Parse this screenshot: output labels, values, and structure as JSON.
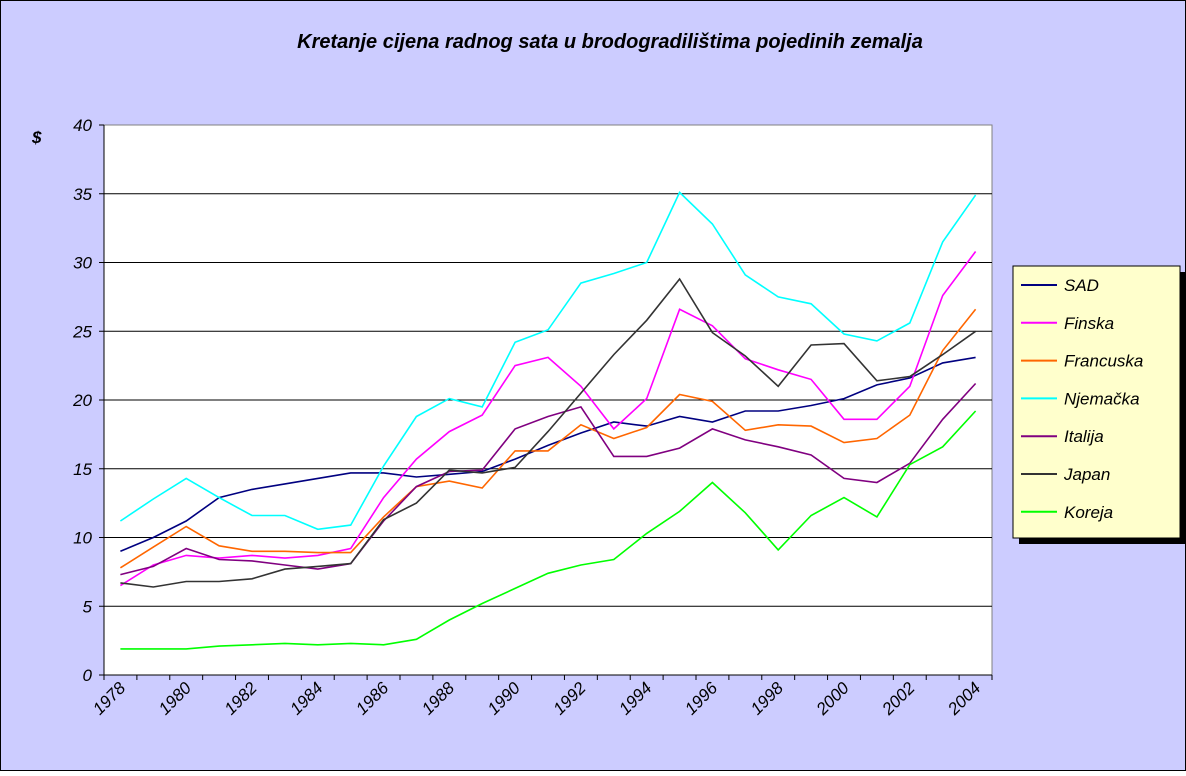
{
  "chart_data": {
    "type": "line",
    "title": "Kretanje cijena radnog sata u brodogradilištima pojedinih zemalja",
    "y_label": "$",
    "categories": [
      "1978",
      null,
      "1980",
      null,
      "1982",
      null,
      "1984",
      null,
      "1986",
      null,
      "1988",
      null,
      "1990",
      null,
      "1992",
      null,
      "1994",
      null,
      "1996",
      null,
      "1998",
      null,
      "2000",
      null,
      "2002",
      null,
      "2004"
    ],
    "ylim": [
      0,
      40
    ],
    "yticks": [
      0,
      5,
      10,
      15,
      20,
      25,
      30,
      35,
      40
    ],
    "grid": true,
    "legend": "right",
    "series": [
      {
        "name": "SAD",
        "color": "#000080",
        "values": [
          9.0,
          10.0,
          11.2,
          12.9,
          13.5,
          13.9,
          14.3,
          14.7,
          14.7,
          14.4,
          14.6,
          14.8,
          15.7,
          16.7,
          17.6,
          18.4,
          18.1,
          18.8,
          18.4,
          19.2,
          19.2,
          19.6,
          20.1,
          21.1,
          21.6,
          22.7,
          23.1
        ]
      },
      {
        "name": "Finska",
        "color": "#ff00ff",
        "values": [
          6.5,
          8.0,
          8.7,
          8.5,
          8.7,
          8.5,
          8.7,
          9.2,
          12.9,
          15.7,
          17.7,
          18.9,
          22.5,
          23.1,
          21.0,
          17.9,
          20.1,
          26.6,
          25.4,
          23.0,
          22.2,
          21.5,
          18.6,
          18.6,
          21.0,
          27.6,
          30.8
        ]
      },
      {
        "name": "Francuska",
        "color": "#ff6600",
        "values": [
          7.8,
          9.3,
          10.8,
          9.4,
          9.0,
          9.0,
          8.9,
          8.9,
          11.5,
          13.7,
          14.1,
          13.6,
          16.3,
          16.3,
          18.2,
          17.2,
          18.0,
          20.4,
          19.9,
          17.8,
          18.2,
          18.1,
          16.9,
          17.2,
          18.9,
          23.6,
          26.6
        ]
      },
      {
        "name": "Njemačka",
        "color": "#00ffff",
        "values": [
          11.2,
          12.8,
          14.3,
          12.9,
          11.6,
          11.6,
          10.6,
          10.9,
          15.2,
          18.8,
          20.1,
          19.5,
          24.2,
          25.1,
          28.5,
          29.2,
          30.0,
          35.1,
          32.8,
          29.1,
          27.5,
          27.0,
          24.8,
          24.3,
          25.6,
          31.5,
          34.9
        ]
      },
      {
        "name": "Italija",
        "color": "#800080",
        "values": [
          7.3,
          7.9,
          9.2,
          8.4,
          8.3,
          8.0,
          7.7,
          8.1,
          11.2,
          13.7,
          14.8,
          14.9,
          17.9,
          18.8,
          19.5,
          15.9,
          15.9,
          16.5,
          17.9,
          17.1,
          16.6,
          16.0,
          14.3,
          14.0,
          15.4,
          18.6,
          21.2
        ]
      },
      {
        "name": "Japan",
        "color": "#333333",
        "values": [
          6.7,
          6.4,
          6.8,
          6.8,
          7.0,
          7.7,
          7.9,
          8.1,
          11.3,
          12.5,
          14.9,
          14.7,
          15.1,
          17.7,
          20.5,
          23.3,
          25.8,
          28.8,
          24.9,
          23.2,
          21.0,
          24.0,
          24.1,
          21.4,
          21.7,
          23.3,
          25.0
        ]
      },
      {
        "name": "Koreja",
        "color": "#00ff00",
        "values": [
          1.9,
          1.9,
          1.9,
          2.1,
          2.2,
          2.3,
          2.2,
          2.3,
          2.2,
          2.6,
          4.0,
          5.2,
          6.3,
          7.4,
          8.0,
          8.4,
          10.3,
          11.9,
          14.0,
          11.8,
          9.1,
          11.6,
          12.9,
          11.5,
          15.3,
          16.6,
          19.2
        ]
      }
    ]
  }
}
